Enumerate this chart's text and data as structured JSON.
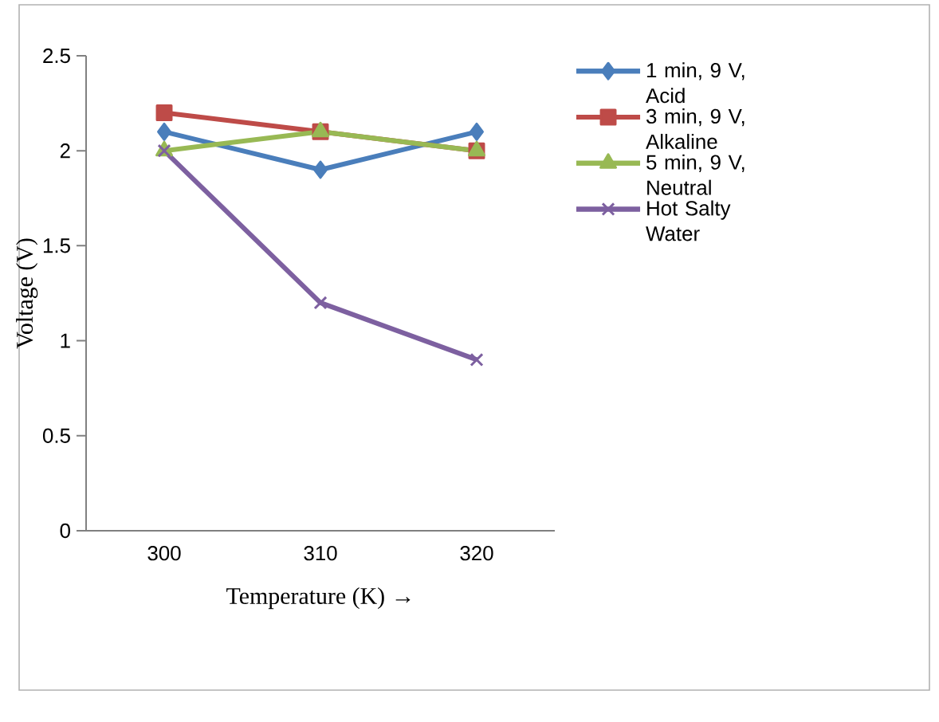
{
  "chart_data": {
    "type": "line",
    "xlabel": "Temperature (K) →",
    "ylabel": "Voltage (V)",
    "categories": [
      "300",
      "310",
      "320"
    ],
    "ylim": [
      0,
      2.5
    ],
    "yticks": [
      0,
      0.5,
      1,
      1.5,
      2,
      2.5
    ],
    "legend": "right",
    "series": [
      {
        "name": "1 min, 9 V, Acid",
        "color": "#4a7ebb",
        "marker": "diamond",
        "values": [
          2.1,
          1.9,
          2.1
        ]
      },
      {
        "name": "3 min, 9 V, Alkaline",
        "color": "#be4b48",
        "marker": "square",
        "values": [
          2.2,
          2.1,
          2.0
        ]
      },
      {
        "name": "5 min, 9 V, Neutral",
        "color": "#98b954",
        "marker": "triangle",
        "values": [
          2.0,
          2.1,
          2.0
        ]
      },
      {
        "name": "Hot Salty Water",
        "color": "#7d60a0",
        "marker": "cross",
        "values": [
          2.0,
          1.2,
          0.9
        ]
      }
    ]
  }
}
